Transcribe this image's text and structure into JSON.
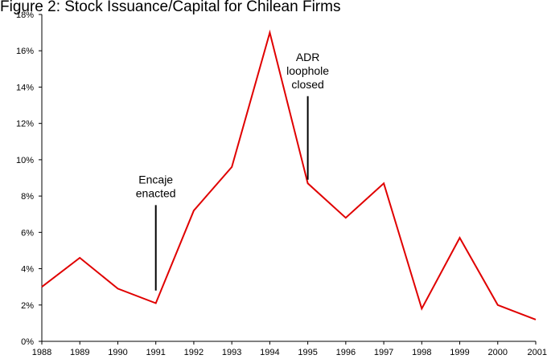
{
  "chart_data": {
    "type": "line",
    "title": "Figure 2: Stock Issuance/Capital for Chilean Firms",
    "xlabel": "",
    "ylabel": "",
    "categories": [
      "1988",
      "1989",
      "1990",
      "1991",
      "1992",
      "1993",
      "1994",
      "1995",
      "1996",
      "1997",
      "1998",
      "1999",
      "2000",
      "2001"
    ],
    "y_ticks": [
      "0%",
      "2%",
      "4%",
      "6%",
      "8%",
      "10%",
      "12%",
      "14%",
      "16%",
      "18%"
    ],
    "ylim": [
      0,
      18
    ],
    "grid": false,
    "legend": "none",
    "series": [
      {
        "color": "#e00000",
        "values": [
          3.0,
          4.6,
          2.9,
          2.1,
          7.2,
          9.6,
          17.0,
          8.7,
          6.8,
          8.7,
          1.8,
          5.7,
          2.0,
          1.2
        ]
      }
    ],
    "annotations": [
      {
        "lines": [
          "Encaje",
          "enacted"
        ],
        "year": "1991",
        "y_top": 7.5,
        "y_bottom": 2.8
      },
      {
        "lines": [
          "ADR",
          "loophole",
          "closed"
        ],
        "year": "1995",
        "y_top": 13.5,
        "y_bottom": 8.9
      }
    ]
  }
}
